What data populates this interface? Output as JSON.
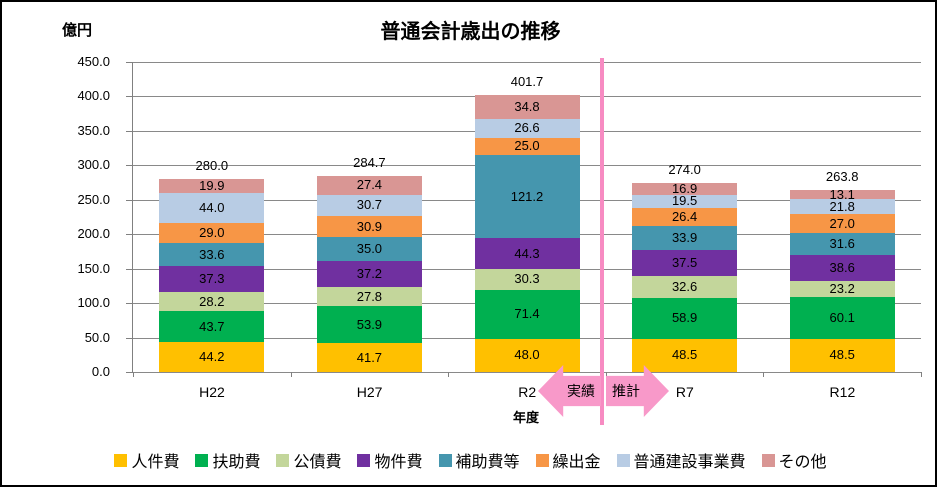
{
  "header": {
    "title": "普通会計歳出の推移",
    "unit_label": "億円"
  },
  "chart_data": {
    "type": "bar",
    "stacked": true,
    "title": "普通会計歳出の推移",
    "unit": "億円",
    "xlabel": "年度",
    "ylabel": "",
    "ylim": [
      0,
      450
    ],
    "ytick_step": 50,
    "grid": true,
    "legend_position": "bottom",
    "categories": [
      "H22",
      "H27",
      "R2",
      "R7",
      "R12"
    ],
    "series": [
      {
        "name": "人件費",
        "color": "#FFC000",
        "values": [
          44.2,
          41.7,
          48.0,
          48.5,
          48.5
        ]
      },
      {
        "name": "扶助費",
        "color": "#00B050",
        "values": [
          43.7,
          53.9,
          71.4,
          58.9,
          60.1
        ]
      },
      {
        "name": "公債費",
        "color": "#C3D69B",
        "values": [
          28.2,
          27.8,
          30.3,
          32.6,
          23.2
        ]
      },
      {
        "name": "物件費",
        "color": "#7030A0",
        "values": [
          37.3,
          37.2,
          44.3,
          37.5,
          38.6
        ]
      },
      {
        "name": "補助費等",
        "color": "#4596AE",
        "values": [
          33.6,
          35.0,
          121.2,
          33.9,
          31.6
        ]
      },
      {
        "name": "繰出金",
        "color": "#F79646",
        "values": [
          29.0,
          30.9,
          25.0,
          26.4,
          27.0
        ]
      },
      {
        "name": "普通建設事業費",
        "color": "#B8CCE4",
        "values": [
          44.0,
          30.7,
          26.6,
          19.5,
          21.8
        ]
      },
      {
        "name": "その他",
        "color": "#D99694",
        "values": [
          19.9,
          27.4,
          34.8,
          16.9,
          13.1
        ]
      }
    ],
    "totals": [
      280.0,
      284.7,
      401.7,
      274.0,
      263.8
    ]
  },
  "annotations": {
    "actual_label": "実績",
    "estimate_label": "推計",
    "divider_color": "#F78BC2",
    "arrow_color": "#F899C9"
  }
}
